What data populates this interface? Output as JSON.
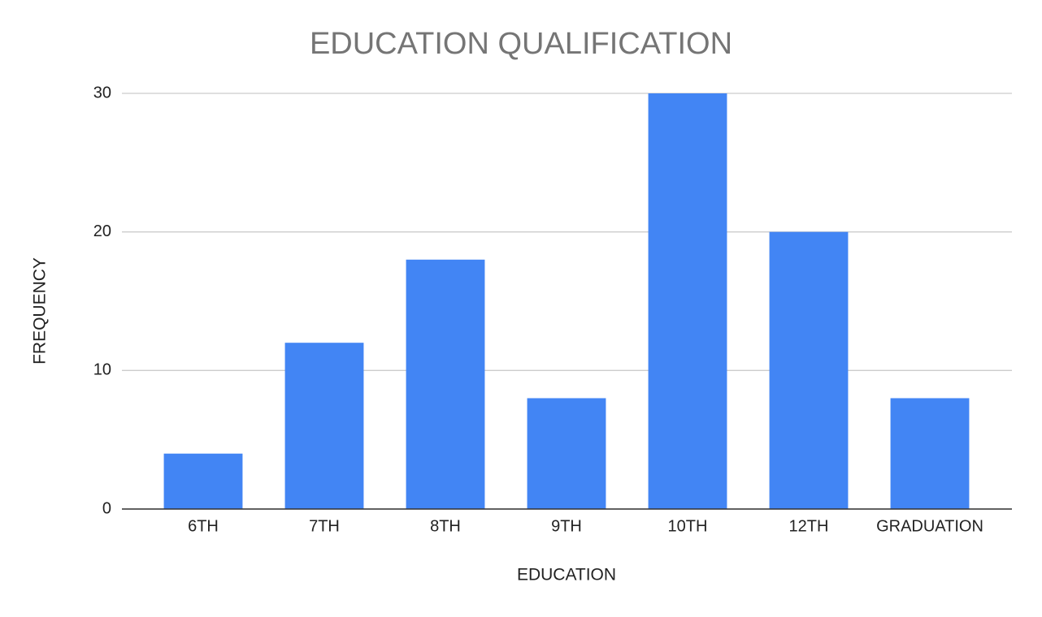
{
  "chart_data": {
    "type": "bar",
    "title": "EDUCATION QUALIFICATION",
    "x_label": "EDUCATION",
    "y_label": "FREQUENCY",
    "categories": [
      "6TH",
      "7TH",
      "8TH",
      "9TH",
      "10TH",
      "12TH",
      "GRADUATION"
    ],
    "values": [
      4,
      12,
      18,
      8,
      30,
      20,
      8
    ],
    "color": "#4285f4",
    "ylim": [
      0,
      30
    ],
    "yticks": [
      0,
      10,
      20,
      30
    ],
    "grid": true
  }
}
